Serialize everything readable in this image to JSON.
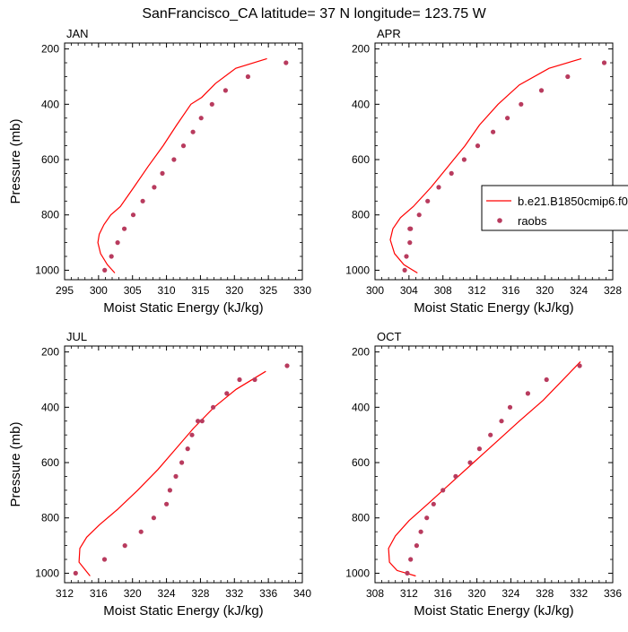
{
  "title": "SanFrancisco_CA  latitude= 37 N longitude= 123.75 W",
  "colors": {
    "model_line": "#ff0000",
    "obs_marker": "#b83b5e"
  },
  "legend": {
    "placement": "right of APR panel",
    "entries": [
      {
        "label": "b.e21.B1850cmip6.f0",
        "type": "line"
      },
      {
        "label": "raobs",
        "type": "marker"
      }
    ]
  },
  "chart_data": [
    {
      "type": "line",
      "panel_label": "JAN",
      "xlabel": "Moist Static Energy (kJ/kg)",
      "ylabel": "Pressure (mb)",
      "xlim": [
        295,
        330
      ],
      "xticks": [
        295,
        300,
        305,
        310,
        315,
        320,
        325,
        330
      ],
      "ylim": [
        200,
        1000
      ],
      "yticks": [
        200,
        400,
        600,
        800,
        1000
      ],
      "y_reversed": true,
      "grid": false,
      "series": [
        {
          "name": "b.e21.B1850cmip6.f0",
          "kind": "line",
          "x": [
            302.4,
            301.3,
            300.3,
            299.9,
            300.1,
            300.8,
            301.8,
            303.2,
            305.2,
            307.3,
            309.5,
            311.5,
            313.6,
            315.2,
            317.2,
            320.2,
            324.8
          ],
          "y": [
            1010,
            980,
            940,
            900,
            870,
            835,
            800,
            770,
            700,
            625,
            550,
            475,
            400,
            375,
            325,
            270,
            235
          ]
        },
        {
          "name": "raobs",
          "kind": "scatter",
          "x": [
            300.9,
            301.9,
            302.8,
            303.8,
            305.1,
            306.5,
            308.2,
            309.4,
            311.1,
            312.5,
            313.9,
            315.1,
            316.7,
            318.7,
            322.0,
            327.6
          ],
          "y": [
            1000,
            950,
            900,
            850,
            800,
            750,
            700,
            650,
            600,
            550,
            500,
            450,
            400,
            350,
            300,
            250
          ]
        }
      ]
    },
    {
      "type": "line",
      "panel_label": "APR",
      "xlabel": "Moist Static Energy (kJ/kg)",
      "ylabel": "",
      "xlim": [
        300,
        328
      ],
      "xticks": [
        300,
        304,
        308,
        312,
        316,
        320,
        324,
        328
      ],
      "ylim": [
        200,
        1000
      ],
      "yticks": [
        200,
        400,
        600,
        800,
        1000
      ],
      "y_reversed": true,
      "grid": false,
      "series": [
        {
          "name": "b.e21.B1850cmip6.f0",
          "kind": "line",
          "x": [
            305.0,
            303.4,
            302.3,
            301.8,
            302.1,
            303.0,
            304.5,
            306.6,
            308.6,
            310.6,
            312.3,
            314.5,
            317.0,
            320.5,
            324.3
          ],
          "y": [
            1010,
            980,
            940,
            890,
            850,
            810,
            770,
            700,
            625,
            550,
            475,
            400,
            330,
            270,
            235
          ]
        },
        {
          "name": "raobs",
          "kind": "scatter",
          "x": [
            303.5,
            303.7,
            304.1,
            304.1,
            304.2,
            305.2,
            306.2,
            307.5,
            309.0,
            310.5,
            312.1,
            313.9,
            315.6,
            317.2,
            319.6,
            322.7,
            327.0
          ],
          "y": [
            1000,
            950,
            900,
            850,
            850,
            800,
            750,
            700,
            650,
            600,
            550,
            500,
            450,
            400,
            350,
            300,
            250
          ]
        }
      ]
    },
    {
      "type": "line",
      "panel_label": "JUL",
      "xlabel": "Moist Static Energy (kJ/kg)",
      "ylabel": "Pressure (mb)",
      "xlim": [
        312,
        340
      ],
      "xticks": [
        312,
        316,
        320,
        324,
        328,
        332,
        336,
        340
      ],
      "ylim": [
        200,
        1000
      ],
      "yticks": [
        200,
        400,
        600,
        800,
        1000
      ],
      "y_reversed": true,
      "grid": false,
      "series": [
        {
          "name": "b.e21.B1850cmip6.f0",
          "kind": "line",
          "x": [
            315.0,
            313.7,
            313.8,
            314.6,
            316.1,
            318.2,
            320.6,
            323.0,
            325.1,
            327.2,
            329.6,
            332.2,
            335.7
          ],
          "y": [
            1010,
            960,
            910,
            870,
            825,
            770,
            700,
            625,
            550,
            475,
            400,
            335,
            270
          ]
        },
        {
          "name": "raobs",
          "kind": "scatter",
          "x": [
            313.3,
            316.7,
            319.1,
            321.0,
            322.5,
            324.0,
            324.4,
            325.1,
            325.8,
            326.5,
            327.0,
            327.7,
            328.2,
            329.5,
            331.1,
            332.6,
            334.4,
            338.2
          ],
          "y": [
            1000,
            950,
            900,
            850,
            800,
            750,
            700,
            650,
            600,
            550,
            500,
            450,
            450,
            400,
            350,
            300,
            300,
            250
          ]
        }
      ]
    },
    {
      "type": "line",
      "panel_label": "OCT",
      "xlabel": "Moist Static Energy (kJ/kg)",
      "ylabel": "",
      "xlim": [
        308,
        336
      ],
      "xticks": [
        308,
        312,
        316,
        320,
        324,
        328,
        332,
        336
      ],
      "ylim": [
        200,
        1000
      ],
      "yticks": [
        200,
        400,
        600,
        800,
        1000
      ],
      "y_reversed": true,
      "grid": false,
      "series": [
        {
          "name": "b.e21.B1850cmip6.f0",
          "kind": "line",
          "x": [
            312.8,
            310.6,
            309.7,
            309.6,
            310.4,
            312.0,
            314.2,
            316.9,
            319.6,
            322.3,
            325.0,
            327.8,
            332.2
          ],
          "y": [
            1010,
            990,
            960,
            910,
            865,
            810,
            750,
            675,
            600,
            525,
            450,
            375,
            235
          ]
        },
        {
          "name": "raobs",
          "kind": "scatter",
          "x": [
            311.8,
            312.2,
            312.9,
            313.4,
            314.1,
            314.9,
            316.0,
            317.5,
            319.2,
            320.3,
            321.6,
            322.9,
            323.9,
            326.0,
            328.2,
            332.1
          ],
          "y": [
            1000,
            950,
            900,
            850,
            800,
            750,
            700,
            650,
            600,
            550,
            500,
            450,
            400,
            350,
            300,
            250
          ]
        }
      ]
    }
  ]
}
